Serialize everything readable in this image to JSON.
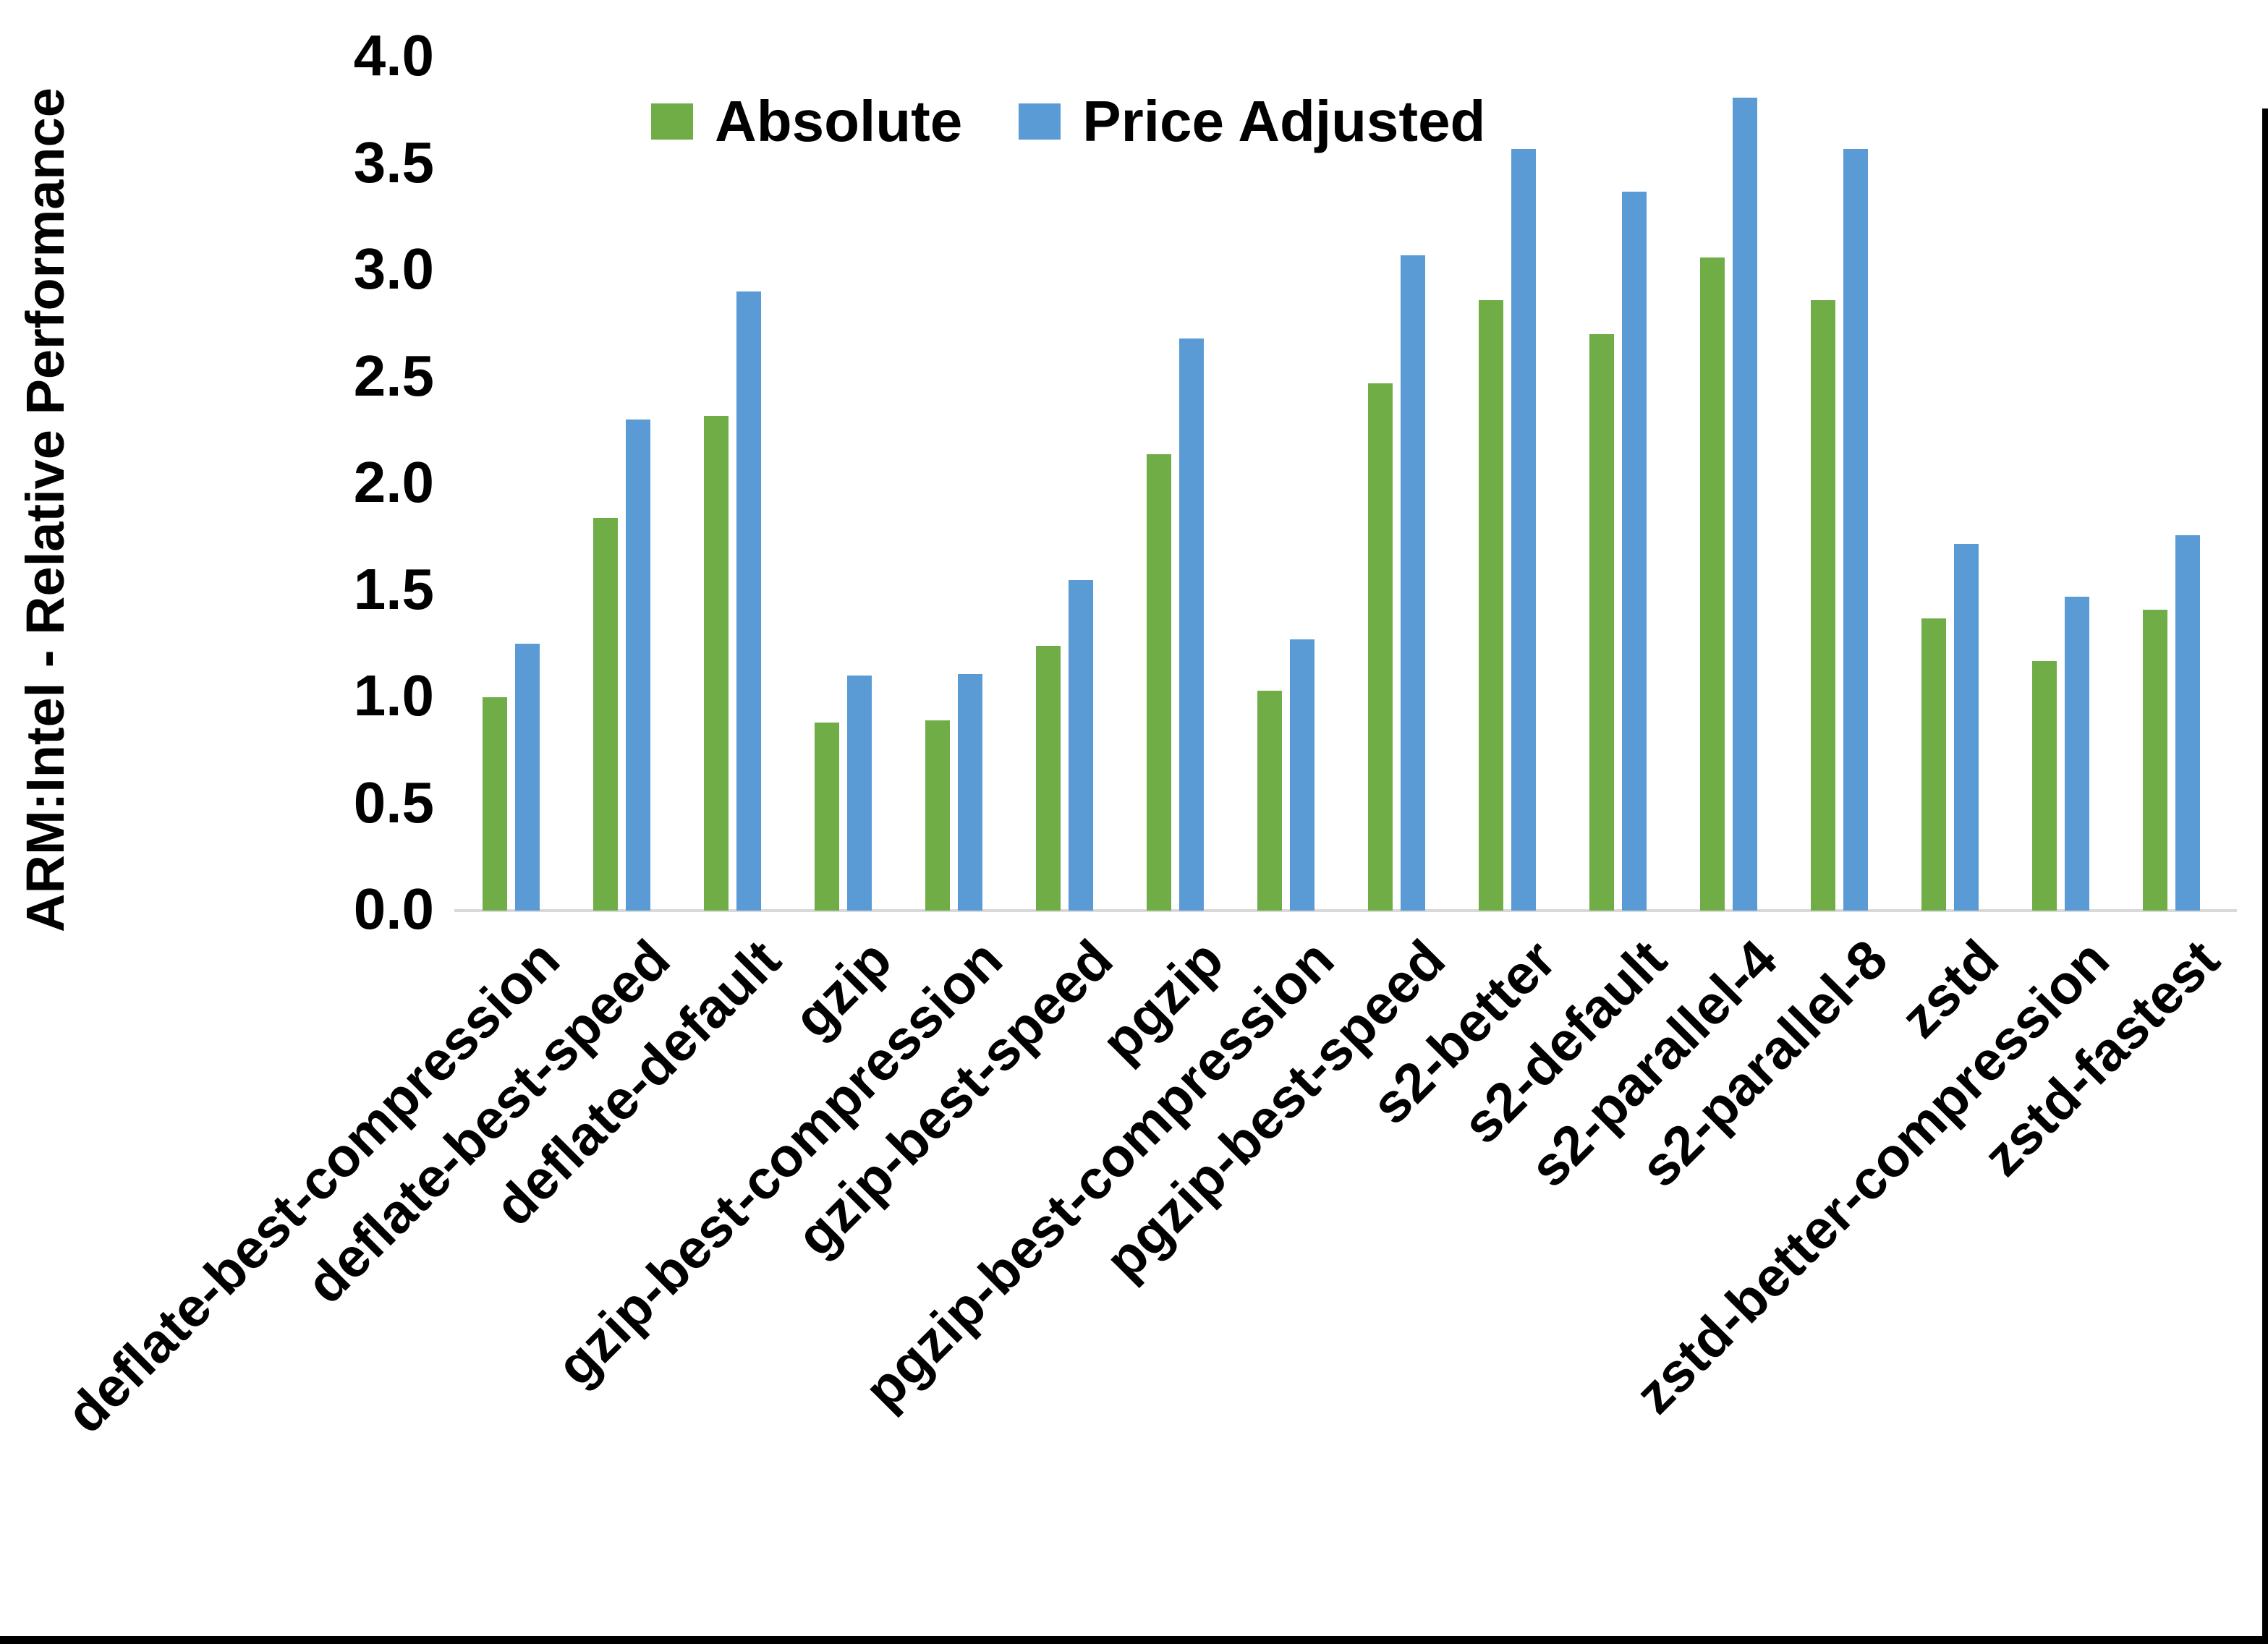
{
  "chart_data": {
    "type": "bar",
    "title": "",
    "xlabel": "",
    "ylabel": "ARM:Intel - Relative Performance",
    "ylim": [
      0.0,
      4.0
    ],
    "ytick_step": 0.5,
    "yticks": [
      "0.0",
      "0.5",
      "1.0",
      "1.5",
      "2.0",
      "2.5",
      "3.0",
      "3.5",
      "4.0"
    ],
    "grid": false,
    "legend_position": "top-center",
    "categories": [
      "deflate-best-compression",
      "deflate-best-speed",
      "deflate-default",
      "gzip",
      "gzip-best-compression",
      "gzip-best-speed",
      "pgzip",
      "pgzip-best-compression",
      "pgzip-best-speed",
      "s2-better",
      "s2-default",
      "s2-parallel-4",
      "s2-parallel-8",
      "zstd",
      "zstd-better-compression",
      "zstd-fastest"
    ],
    "series": [
      {
        "name": "Absolute",
        "color": "#70AD47",
        "values": [
          1.0,
          1.84,
          2.32,
          0.88,
          0.89,
          1.24,
          2.14,
          1.03,
          2.47,
          2.86,
          2.7,
          3.06,
          2.86,
          1.37,
          1.17,
          1.41
        ]
      },
      {
        "name": "Price Adjusted",
        "color": "#5B9BD5",
        "values": [
          1.25,
          2.3,
          2.9,
          1.1,
          1.11,
          1.55,
          2.68,
          1.27,
          3.07,
          3.57,
          3.37,
          3.81,
          3.57,
          1.72,
          1.47,
          1.76
        ]
      }
    ],
    "axis_line_color": "#D9D9D9",
    "text_color": "#000000",
    "page_border_color": "#000000"
  }
}
